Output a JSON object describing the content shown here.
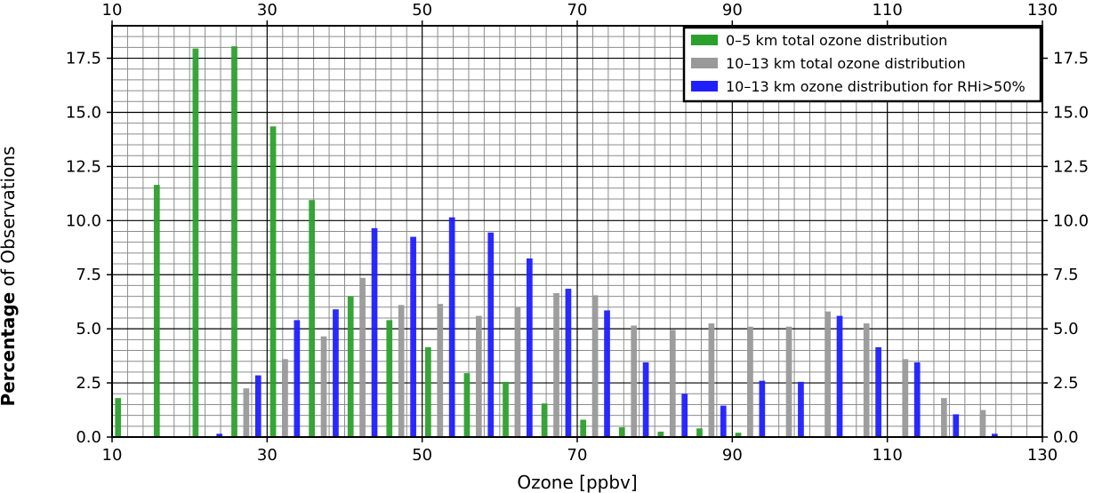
{
  "chart_data": {
    "type": "bar",
    "xlabel": "Ozone [ppbv]",
    "ylabel_bold": "Percentage",
    "ylabel_rest": " of Observations",
    "xlim": [
      10,
      130
    ],
    "ylim": [
      0,
      19
    ],
    "xticks": [
      10,
      30,
      50,
      70,
      90,
      110,
      130
    ],
    "yticks": [
      0.0,
      2.5,
      5.0,
      7.5,
      10.0,
      12.5,
      15.0,
      17.5
    ],
    "ytick_labels": [
      "0.0",
      "2.5",
      "5.0",
      "7.5",
      "10.0",
      "12.5",
      "15.0",
      "17.5"
    ],
    "grid": true,
    "legend_position": "top-right",
    "bin_width": 5,
    "bin_starts": [
      10,
      15,
      20,
      25,
      30,
      35,
      40,
      45,
      50,
      55,
      60,
      65,
      70,
      75,
      80,
      85,
      90,
      95,
      100,
      105,
      110,
      115,
      120
    ],
    "series": [
      {
        "name": "0–5 km total ozone distribution",
        "color": "#2ca02c",
        "values": [
          1.8,
          11.65,
          17.95,
          18.05,
          14.35,
          10.95,
          6.5,
          5.4,
          4.15,
          2.95,
          2.55,
          1.55,
          0.8,
          0.45,
          0.25,
          0.4,
          0.2,
          0,
          0,
          0,
          0,
          0,
          0
        ]
      },
      {
        "name": "10–13 km total ozone distribution",
        "color": "#999999",
        "values": [
          0,
          0,
          0,
          2.25,
          3.6,
          4.65,
          7.35,
          6.1,
          6.15,
          5.6,
          6.0,
          6.65,
          6.55,
          5.15,
          4.95,
          5.25,
          5.1,
          5.1,
          5.8,
          5.25,
          3.6,
          1.8,
          1.25
        ]
      },
      {
        "name": "10–13 km ozone distribution for RHi>50%",
        "color": "#1f1fff",
        "values": [
          0,
          0,
          0.15,
          2.85,
          5.4,
          5.9,
          9.65,
          9.25,
          10.15,
          9.45,
          8.25,
          6.85,
          5.85,
          3.45,
          2.0,
          1.45,
          2.6,
          2.55,
          5.6,
          4.15,
          3.45,
          1.05,
          0.15
        ]
      }
    ]
  }
}
